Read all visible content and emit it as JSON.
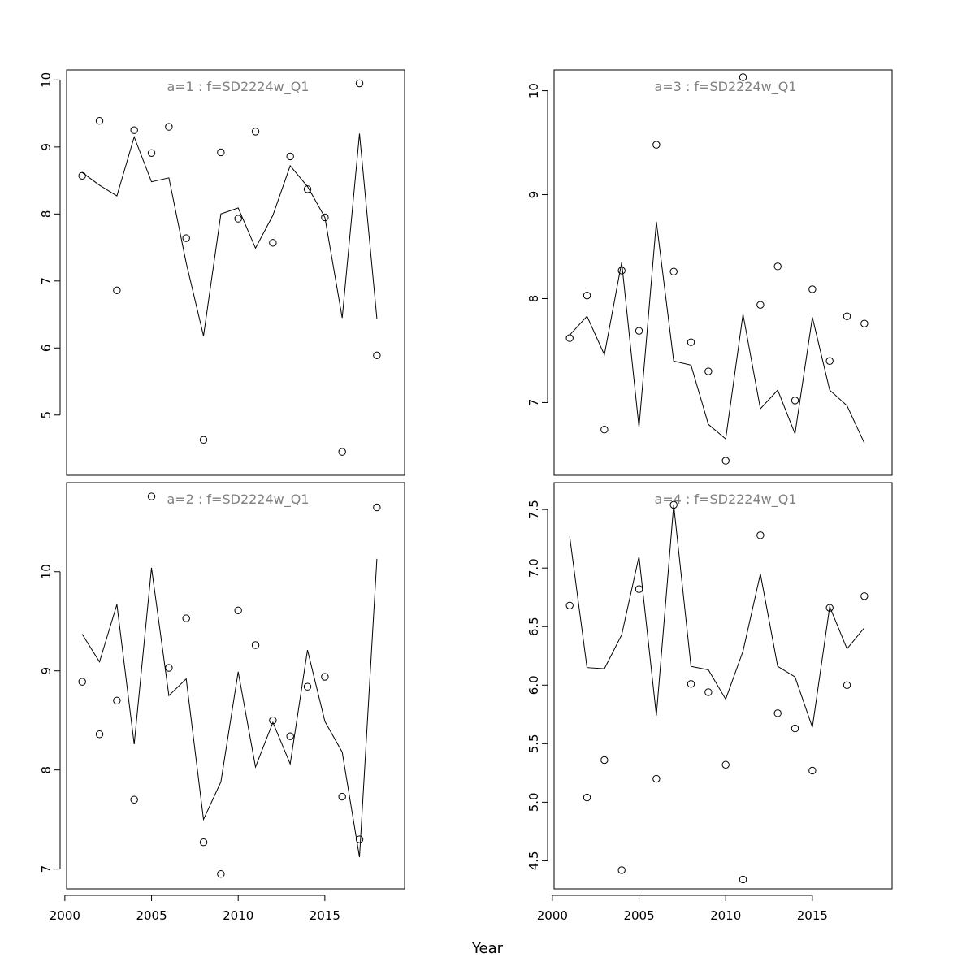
{
  "figure": {
    "xlabel": "Year"
  },
  "chart_data": [
    {
      "type": "scatter",
      "title": "a=1  :  f=SD2224w_Q1",
      "x": [
        2001,
        2002,
        2003,
        2004,
        2005,
        2006,
        2007,
        2008,
        2009,
        2010,
        2011,
        2012,
        2013,
        2014,
        2015,
        2016,
        2017,
        2018
      ],
      "series": [
        {
          "kind": "points",
          "values": [
            8.57,
            9.39,
            6.86,
            9.25,
            8.91,
            9.3,
            7.64,
            4.63,
            8.92,
            7.93,
            9.23,
            7.57,
            8.86,
            8.37,
            7.95,
            4.45,
            9.95,
            5.89
          ]
        },
        {
          "kind": "line",
          "values": [
            8.62,
            8.43,
            8.27,
            9.15,
            8.48,
            8.54,
            7.27,
            6.18,
            8.0,
            8.09,
            7.49,
            7.98,
            8.72,
            8.41,
            7.95,
            6.45,
            9.2,
            6.44
          ]
        }
      ],
      "yticks": [
        5,
        6,
        7,
        8,
        9,
        10
      ],
      "ylim": [
        4.1,
        10.15
      ],
      "xlim": [
        2000.1,
        2019.6
      ]
    },
    {
      "type": "scatter",
      "title": "a=3  :  f=SD2224w_Q1",
      "x": [
        2001,
        2002,
        2003,
        2004,
        2005,
        2006,
        2007,
        2008,
        2009,
        2010,
        2011,
        2012,
        2013,
        2014,
        2015,
        2016,
        2017,
        2018
      ],
      "series": [
        {
          "kind": "points",
          "values": [
            7.62,
            8.03,
            6.74,
            8.27,
            7.69,
            9.48,
            8.26,
            7.58,
            7.3,
            6.44,
            10.13,
            7.94,
            8.31,
            7.02,
            8.09,
            7.4,
            7.83,
            7.76
          ]
        },
        {
          "kind": "line",
          "values": [
            7.65,
            7.83,
            7.46,
            8.35,
            6.76,
            8.74,
            7.4,
            7.36,
            6.79,
            6.65,
            7.85,
            6.94,
            7.12,
            6.7,
            7.82,
            7.12,
            6.97,
            6.61
          ]
        }
      ],
      "yticks": [
        7,
        8,
        9,
        10
      ],
      "ylim": [
        6.3,
        10.2
      ],
      "xlim": [
        2000.1,
        2019.6
      ]
    },
    {
      "type": "scatter",
      "title": "a=2  :  f=SD2224w_Q1",
      "x": [
        2001,
        2002,
        2003,
        2004,
        2005,
        2006,
        2007,
        2008,
        2009,
        2010,
        2011,
        2012,
        2013,
        2014,
        2015,
        2016,
        2017,
        2018
      ],
      "series": [
        {
          "kind": "points",
          "values": [
            8.89,
            8.36,
            8.7,
            7.7,
            10.76,
            9.03,
            9.53,
            7.27,
            6.95,
            9.61,
            9.26,
            8.5,
            8.34,
            8.84,
            8.94,
            7.73,
            7.3,
            10.65
          ]
        },
        {
          "kind": "line",
          "values": [
            9.37,
            9.09,
            9.67,
            8.26,
            10.04,
            8.75,
            8.92,
            7.5,
            7.88,
            8.99,
            8.03,
            8.48,
            8.06,
            9.21,
            8.49,
            8.18,
            7.12,
            10.13
          ]
        }
      ],
      "yticks": [
        7,
        8,
        9,
        10
      ],
      "ylim": [
        6.8,
        10.9
      ],
      "xlim": [
        2000.1,
        2019.6
      ]
    },
    {
      "type": "scatter",
      "title": "a=4  :  f=SD2224w_Q1",
      "x": [
        2001,
        2002,
        2003,
        2004,
        2005,
        2006,
        2007,
        2008,
        2009,
        2010,
        2011,
        2012,
        2013,
        2014,
        2015,
        2016,
        2017,
        2018
      ],
      "series": [
        {
          "kind": "points",
          "values": [
            6.68,
            5.04,
            5.36,
            4.42,
            6.82,
            5.2,
            7.54,
            6.01,
            5.94,
            5.32,
            4.34,
            7.28,
            5.76,
            5.63,
            5.27,
            6.66,
            6.0,
            6.76
          ]
        },
        {
          "kind": "line",
          "values": [
            7.27,
            6.15,
            6.14,
            6.43,
            7.1,
            5.74,
            7.54,
            6.16,
            6.13,
            5.88,
            6.29,
            6.95,
            6.16,
            6.07,
            5.64,
            6.67,
            6.31,
            6.49
          ]
        }
      ],
      "yticks": [
        4.5,
        5.0,
        5.5,
        6.0,
        6.5,
        7.0,
        7.5
      ],
      "ylim": [
        4.26,
        7.73
      ],
      "xlim": [
        2000.1,
        2019.6
      ]
    }
  ],
  "xticks": [
    2000,
    2005,
    2010,
    2015
  ]
}
